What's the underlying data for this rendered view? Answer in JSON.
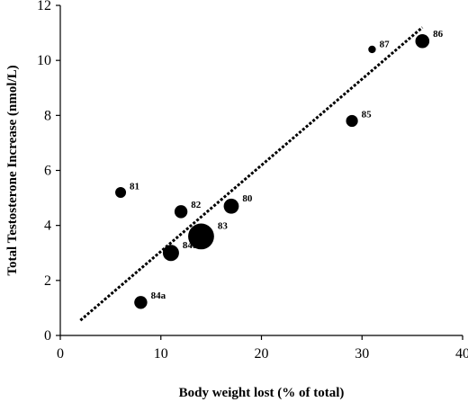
{
  "chart_data": {
    "type": "scatter",
    "title": "",
    "xlabel": "Body weight lost (% of total)",
    "ylabel": "Total Testosterone Increase (nmol/L)",
    "xlim": [
      0,
      40
    ],
    "ylim": [
      0,
      12
    ],
    "xticks": [
      "0",
      "10",
      "20",
      "30",
      "40"
    ],
    "yticks": [
      "0",
      "2",
      "4",
      "6",
      "8",
      "10",
      "12"
    ],
    "grid": false,
    "marker_color": "#000000",
    "points": [
      {
        "label": "81",
        "x": 6,
        "y": 5.2,
        "size": 1.0
      },
      {
        "label": "82",
        "x": 12,
        "y": 4.5,
        "size": 1.2
      },
      {
        "label": "80",
        "x": 17,
        "y": 4.7,
        "size": 1.4
      },
      {
        "label": "83",
        "x": 14,
        "y": 3.6,
        "size": 2.4
      },
      {
        "label": "84b",
        "x": 11,
        "y": 3.0,
        "size": 1.5
      },
      {
        "label": "84a",
        "x": 8,
        "y": 1.2,
        "size": 1.2
      },
      {
        "label": "85",
        "x": 29,
        "y": 7.8,
        "size": 1.1
      },
      {
        "label": "87",
        "x": 31,
        "y": 10.4,
        "size": 0.7
      },
      {
        "label": "86",
        "x": 36,
        "y": 10.7,
        "size": 1.3
      }
    ],
    "trendline": {
      "x": [
        2,
        36
      ],
      "y": [
        0.55,
        11.2
      ],
      "style": "dotted"
    }
  }
}
